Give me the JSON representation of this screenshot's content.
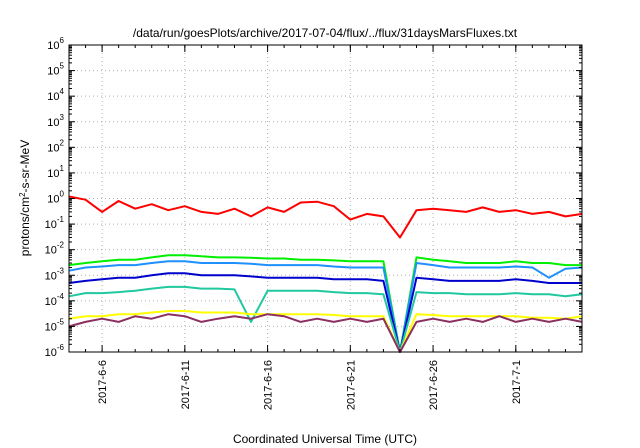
{
  "chart_data": {
    "type": "line",
    "title": "/data/run/goesPlots/archive/2017-07-04/flux/../flux/31daysMarsFluxes.txt",
    "xlabel": "Coordinated Universal Time (UTC)",
    "ylabel": {
      "prefix": "protons/cm",
      "sup": "2",
      "suffix": "-s-sr-MeV"
    },
    "y_scale": "log",
    "ylim": [
      1e-06,
      1000000.0
    ],
    "y_ticks": [
      {
        "value": 1e-06,
        "base": "10",
        "exp": "-6"
      },
      {
        "value": 1e-05,
        "base": "10",
        "exp": "-5"
      },
      {
        "value": 0.0001,
        "base": "10",
        "exp": "-4"
      },
      {
        "value": 0.001,
        "base": "10",
        "exp": "-3"
      },
      {
        "value": 0.01,
        "base": "10",
        "exp": "-2"
      },
      {
        "value": 0.1,
        "base": "10",
        "exp": "-1"
      },
      {
        "value": 1.0,
        "base": "10",
        "exp": "0"
      },
      {
        "value": 10.0,
        "base": "10",
        "exp": "1"
      },
      {
        "value": 100.0,
        "base": "10",
        "exp": "2"
      },
      {
        "value": 1000.0,
        "base": "10",
        "exp": "3"
      },
      {
        "value": 10000.0,
        "base": "10",
        "exp": "4"
      },
      {
        "value": 100000.0,
        "base": "10",
        "exp": "5"
      },
      {
        "value": 1000000.0,
        "base": "10",
        "exp": "6"
      }
    ],
    "xlim": [
      "2017-06-04",
      "2017-07-05"
    ],
    "x_ticks": [
      "2017-6-6",
      "2017-6-11",
      "2017-6-16",
      "2017-6-21",
      "2017-6-26",
      "2017-7-1"
    ],
    "grid": true,
    "series": [
      {
        "color": "#ff0000",
        "x": [
          "2017-06-04",
          "2017-06-05",
          "2017-06-06",
          "2017-06-07",
          "2017-06-08",
          "2017-06-09",
          "2017-06-10",
          "2017-06-11",
          "2017-06-12",
          "2017-06-13",
          "2017-06-14",
          "2017-06-15",
          "2017-06-16",
          "2017-06-17",
          "2017-06-18",
          "2017-06-19",
          "2017-06-20",
          "2017-06-21",
          "2017-06-22",
          "2017-06-23",
          "2017-06-24",
          "2017-06-25",
          "2017-06-26",
          "2017-06-27",
          "2017-06-28",
          "2017-06-29",
          "2017-06-30",
          "2017-07-01",
          "2017-07-02",
          "2017-07-03",
          "2017-07-04",
          "2017-07-05"
        ],
        "values": [
          1.2,
          0.9,
          0.3,
          0.8,
          0.4,
          0.6,
          0.35,
          0.5,
          0.3,
          0.25,
          0.4,
          0.2,
          0.45,
          0.3,
          0.7,
          0.75,
          0.5,
          0.15,
          0.25,
          0.2,
          0.03,
          0.35,
          0.4,
          0.35,
          0.3,
          0.45,
          0.3,
          0.35,
          0.25,
          0.3,
          0.2,
          0.25
        ]
      },
      {
        "color": "#00ee00",
        "x": [
          "2017-06-04",
          "2017-06-05",
          "2017-06-06",
          "2017-06-07",
          "2017-06-08",
          "2017-06-09",
          "2017-06-10",
          "2017-06-11",
          "2017-06-12",
          "2017-06-13",
          "2017-06-14",
          "2017-06-15",
          "2017-06-16",
          "2017-06-17",
          "2017-06-18",
          "2017-06-19",
          "2017-06-20",
          "2017-06-21",
          "2017-06-22",
          "2017-06-23",
          "2017-06-24",
          "2017-06-25",
          "2017-06-26",
          "2017-06-27",
          "2017-06-28",
          "2017-06-29",
          "2017-06-30",
          "2017-07-01",
          "2017-07-02",
          "2017-07-03",
          "2017-07-04",
          "2017-07-05"
        ],
        "values": [
          0.0025,
          0.003,
          0.0035,
          0.004,
          0.004,
          0.005,
          0.006,
          0.006,
          0.0055,
          0.005,
          0.005,
          0.0048,
          0.0045,
          0.0045,
          0.004,
          0.004,
          0.0038,
          0.0035,
          0.0035,
          0.0035,
          1e-06,
          0.005,
          0.004,
          0.0035,
          0.003,
          0.003,
          0.003,
          0.0035,
          0.003,
          0.003,
          0.0025,
          0.0025
        ]
      },
      {
        "color": "#1e90ff",
        "x": [
          "2017-06-04",
          "2017-06-05",
          "2017-06-06",
          "2017-06-07",
          "2017-06-08",
          "2017-06-09",
          "2017-06-10",
          "2017-06-11",
          "2017-06-12",
          "2017-06-13",
          "2017-06-14",
          "2017-06-15",
          "2017-06-16",
          "2017-06-17",
          "2017-06-18",
          "2017-06-19",
          "2017-06-20",
          "2017-06-21",
          "2017-06-22",
          "2017-06-23",
          "2017-06-24",
          "2017-06-25",
          "2017-06-26",
          "2017-06-27",
          "2017-06-28",
          "2017-06-29",
          "2017-06-30",
          "2017-07-01",
          "2017-07-02",
          "2017-07-03",
          "2017-07-04",
          "2017-07-05"
        ],
        "values": [
          0.0015,
          0.002,
          0.0022,
          0.0025,
          0.0025,
          0.003,
          0.0035,
          0.0035,
          0.003,
          0.003,
          0.003,
          0.0028,
          0.0025,
          0.0025,
          0.0025,
          0.0025,
          0.0022,
          0.002,
          0.002,
          0.002,
          1e-06,
          0.003,
          0.0025,
          0.002,
          0.002,
          0.002,
          0.002,
          0.0022,
          0.002,
          0.0008,
          0.0018,
          0.002
        ]
      },
      {
        "color": "#0000cd",
        "x": [
          "2017-06-04",
          "2017-06-05",
          "2017-06-06",
          "2017-06-07",
          "2017-06-08",
          "2017-06-09",
          "2017-06-10",
          "2017-06-11",
          "2017-06-12",
          "2017-06-13",
          "2017-06-14",
          "2017-06-15",
          "2017-06-16",
          "2017-06-17",
          "2017-06-18",
          "2017-06-19",
          "2017-06-20",
          "2017-06-21",
          "2017-06-22",
          "2017-06-23",
          "2017-06-24",
          "2017-06-25",
          "2017-06-26",
          "2017-06-27",
          "2017-06-28",
          "2017-06-29",
          "2017-06-30",
          "2017-07-01",
          "2017-07-02",
          "2017-07-03",
          "2017-07-04",
          "2017-07-05"
        ],
        "values": [
          0.0005,
          0.0006,
          0.0007,
          0.0008,
          0.0008,
          0.001,
          0.0012,
          0.0012,
          0.001,
          0.001,
          0.001,
          0.0009,
          0.0008,
          0.0008,
          0.0008,
          0.0008,
          0.0007,
          0.0007,
          0.0007,
          0.0006,
          1e-06,
          0.0008,
          0.0007,
          0.0006,
          0.0006,
          0.0006,
          0.0006,
          0.0007,
          0.0006,
          0.0005,
          0.0005,
          0.0005
        ]
      },
      {
        "color": "#20c8a0",
        "x": [
          "2017-06-04",
          "2017-06-05",
          "2017-06-06",
          "2017-06-07",
          "2017-06-08",
          "2017-06-09",
          "2017-06-10",
          "2017-06-11",
          "2017-06-12",
          "2017-06-13",
          "2017-06-14",
          "2017-06-15",
          "2017-06-16",
          "2017-06-17",
          "2017-06-18",
          "2017-06-19",
          "2017-06-20",
          "2017-06-21",
          "2017-06-22",
          "2017-06-23",
          "2017-06-24",
          "2017-06-25",
          "2017-06-26",
          "2017-06-27",
          "2017-06-28",
          "2017-06-29",
          "2017-06-30",
          "2017-07-01",
          "2017-07-02",
          "2017-07-03",
          "2017-07-04",
          "2017-07-05"
        ],
        "values": [
          0.00015,
          0.0002,
          0.0002,
          0.00022,
          0.00025,
          0.0003,
          0.00035,
          0.00035,
          0.0003,
          0.0003,
          0.00028,
          1.5e-05,
          0.00025,
          0.00025,
          0.00025,
          0.00025,
          0.00022,
          0.0002,
          0.0002,
          0.00018,
          1e-06,
          0.00022,
          0.0002,
          0.0002,
          0.00018,
          0.00018,
          0.00018,
          0.0002,
          0.00018,
          0.00018,
          0.00015,
          0.00018
        ]
      },
      {
        "color": "#ffff00",
        "x": [
          "2017-06-04",
          "2017-06-05",
          "2017-06-06",
          "2017-06-07",
          "2017-06-08",
          "2017-06-09",
          "2017-06-10",
          "2017-06-11",
          "2017-06-12",
          "2017-06-13",
          "2017-06-14",
          "2017-06-15",
          "2017-06-16",
          "2017-06-17",
          "2017-06-18",
          "2017-06-19",
          "2017-06-20",
          "2017-06-21",
          "2017-06-22",
          "2017-06-23",
          "2017-06-24",
          "2017-06-25",
          "2017-06-26",
          "2017-06-27",
          "2017-06-28",
          "2017-06-29",
          "2017-06-30",
          "2017-07-01",
          "2017-07-02",
          "2017-07-03",
          "2017-07-04",
          "2017-07-05"
        ],
        "values": [
          2e-05,
          2.5e-05,
          2.5e-05,
          3e-05,
          3e-05,
          3.5e-05,
          4e-05,
          4e-05,
          3.5e-05,
          3.5e-05,
          3.5e-05,
          3e-05,
          3e-05,
          3e-05,
          3e-05,
          3e-05,
          2.8e-05,
          2.5e-05,
          2.5e-05,
          2.5e-05,
          1e-06,
          3e-05,
          2.8e-05,
          2.5e-05,
          2.5e-05,
          2.5e-05,
          2.5e-05,
          2.5e-05,
          2.2e-05,
          2.2e-05,
          2e-05,
          2.5e-05
        ]
      },
      {
        "color": "#8b3060",
        "x": [
          "2017-06-04",
          "2017-06-05",
          "2017-06-06",
          "2017-06-07",
          "2017-06-08",
          "2017-06-09",
          "2017-06-10",
          "2017-06-11",
          "2017-06-12",
          "2017-06-13",
          "2017-06-14",
          "2017-06-15",
          "2017-06-16",
          "2017-06-17",
          "2017-06-18",
          "2017-06-19",
          "2017-06-20",
          "2017-06-21",
          "2017-06-22",
          "2017-06-23",
          "2017-06-24",
          "2017-06-25",
          "2017-06-26",
          "2017-06-27",
          "2017-06-28",
          "2017-06-29",
          "2017-06-30",
          "2017-07-01",
          "2017-07-02",
          "2017-07-03",
          "2017-07-04",
          "2017-07-05"
        ],
        "values": [
          1e-05,
          1.5e-05,
          2e-05,
          1.5e-05,
          2.5e-05,
          2e-05,
          3e-05,
          2.5e-05,
          1.5e-05,
          2e-05,
          2.5e-05,
          2e-05,
          3e-05,
          2.5e-05,
          1.5e-05,
          2e-05,
          1.5e-05,
          2e-05,
          1.5e-05,
          2e-05,
          1e-06,
          1.5e-05,
          2e-05,
          1.5e-05,
          2e-05,
          1.5e-05,
          2.5e-05,
          1.5e-05,
          2e-05,
          1.5e-05,
          2e-05,
          1.5e-05
        ]
      }
    ]
  }
}
